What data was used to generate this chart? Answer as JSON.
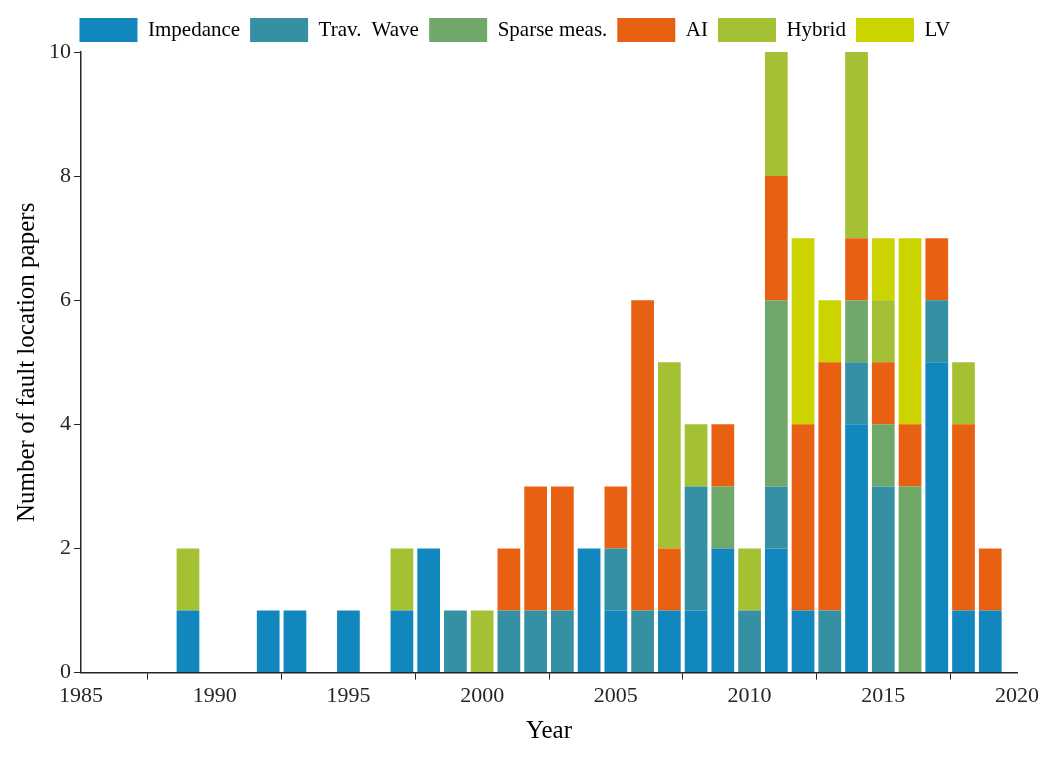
{
  "chart_data": {
    "type": "bar",
    "stacked": true,
    "xlabel": "Year",
    "ylabel": "Number of fault location papers",
    "x": [
      1989,
      1990,
      1991,
      1992,
      1993,
      1994,
      1995,
      1996,
      1997,
      1998,
      1999,
      2000,
      2001,
      2002,
      2003,
      2004,
      2005,
      2006,
      2007,
      2008,
      2009,
      2010,
      2011,
      2012,
      2013,
      2014,
      2015,
      2016,
      2017,
      2018,
      2019
    ],
    "series": [
      {
        "name": "Impedance",
        "color": "#1287bd",
        "values": [
          1,
          0,
          0,
          1,
          1,
          0,
          1,
          0,
          1,
          2,
          0,
          0,
          0,
          0,
          0,
          2,
          1,
          0,
          1,
          1,
          2,
          0,
          2,
          1,
          0,
          4,
          0,
          0,
          5,
          1,
          1
        ]
      },
      {
        "name": "Trav.  Wave",
        "color": "#3690a3",
        "values": [
          0,
          0,
          0,
          0,
          0,
          0,
          0,
          0,
          0,
          0,
          1,
          0,
          1,
          1,
          1,
          0,
          1,
          1,
          0,
          2,
          0,
          1,
          1,
          0,
          1,
          1,
          3,
          0,
          1,
          0,
          0
        ]
      },
      {
        "name": "Sparse meas.",
        "color": "#70a86a",
        "values": [
          0,
          0,
          0,
          0,
          0,
          0,
          0,
          0,
          0,
          0,
          0,
          0,
          0,
          0,
          0,
          0,
          0,
          0,
          0,
          0,
          1,
          0,
          3,
          0,
          0,
          1,
          1,
          3,
          0,
          0,
          0
        ]
      },
      {
        "name": "AI",
        "color": "#e86113",
        "values": [
          0,
          0,
          0,
          0,
          0,
          0,
          0,
          0,
          0,
          0,
          0,
          0,
          1,
          2,
          2,
          0,
          1,
          5,
          1,
          0,
          1,
          0,
          2,
          3,
          4,
          1,
          1,
          1,
          1,
          3,
          1
        ]
      },
      {
        "name": "Hybrid",
        "color": "#a4c133",
        "values": [
          1,
          0,
          0,
          0,
          0,
          0,
          0,
          0,
          1,
          0,
          0,
          1,
          0,
          0,
          0,
          0,
          0,
          0,
          3,
          1,
          0,
          1,
          2,
          0,
          0,
          3,
          1,
          0,
          0,
          1,
          0
        ]
      },
      {
        "name": "LV",
        "color": "#ccd400",
        "values": [
          0,
          0,
          0,
          0,
          0,
          0,
          0,
          0,
          0,
          0,
          0,
          0,
          0,
          0,
          0,
          0,
          0,
          0,
          0,
          0,
          0,
          0,
          0,
          3,
          1,
          0,
          1,
          3,
          0,
          0,
          0
        ]
      }
    ],
    "xlim": [
      1985,
      2020
    ],
    "xticks": [
      1985,
      1990,
      1995,
      2000,
      2005,
      2010,
      2015,
      2020
    ],
    "ylim": [
      0,
      10
    ],
    "yticks": [
      0,
      2,
      4,
      6,
      8,
      10
    ],
    "grid": false,
    "legend": "top"
  }
}
